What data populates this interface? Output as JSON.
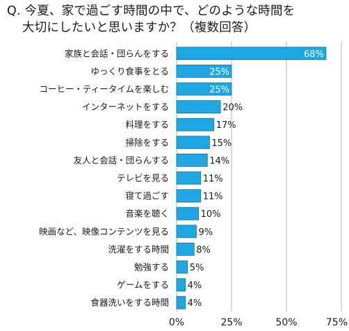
{
  "title": {
    "line1": "Q. 今夏、家で過ごす時間の中で、どのような時間を",
    "line2": "大切にしたいと思いますか？（複数回答）"
  },
  "colors": {
    "bar_fill": "#1fa7e3",
    "bar_stroke": "#15749e",
    "gridline": "#b7b7b7"
  },
  "chart_data": {
    "type": "bar",
    "orientation": "horizontal",
    "categories": [
      "家族と会話・団らんをする",
      "ゆっくり食事をとる",
      "コーヒー・ティータイムを楽しむ",
      "インターネットをする",
      "料理をする",
      "掃除をする",
      "友人と会話・団らんする",
      "テレビを見る",
      "寝て過ごす",
      "音楽を聴く",
      "映画など、映像コンテンツを見る",
      "洗濯をする時間",
      "勉強する",
      "ゲームをする",
      "食器洗いをする時間"
    ],
    "values": [
      68,
      25,
      25,
      20,
      17,
      15,
      14,
      11,
      11,
      10,
      9,
      8,
      5,
      4,
      4
    ],
    "value_labels": [
      "68%",
      "25%",
      "25%",
      "20%",
      "17%",
      "15%",
      "14%",
      "11%",
      "11%",
      "10%",
      "9%",
      "8%",
      "5%",
      "4%",
      "4%"
    ],
    "labels_inside": [
      true,
      true,
      true,
      false,
      false,
      false,
      false,
      false,
      false,
      false,
      false,
      false,
      false,
      false,
      false
    ],
    "xlim": [
      0,
      75
    ],
    "ticks": [
      0,
      25,
      50,
      75
    ],
    "tick_labels": [
      "0%",
      "25%",
      "50%",
      "75%"
    ],
    "grid": true,
    "legend": "none"
  }
}
